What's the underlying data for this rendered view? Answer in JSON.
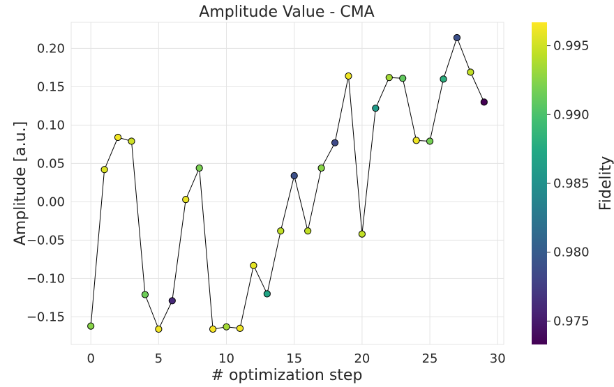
{
  "chart_data": {
    "type": "scatter",
    "title": "Amplitude Value - CMA",
    "xlabel": "# optimization step",
    "ylabel": "Amplitude [a.u.]",
    "xlim": [
      -1.45,
      30.45
    ],
    "ylim": [
      -0.186,
      0.234
    ],
    "x_ticks": [
      0,
      5,
      10,
      15,
      20,
      25,
      30
    ],
    "y_ticks": [
      -0.15,
      -0.1,
      -0.05,
      0.0,
      0.05,
      0.1,
      0.15,
      0.2
    ],
    "x_tick_labels": [
      "0",
      "5",
      "10",
      "15",
      "20",
      "25",
      "30"
    ],
    "y_tick_labels": [
      "−0.15",
      "−0.10",
      "−0.05",
      "0.00",
      "0.05",
      "0.10",
      "0.15",
      "0.20"
    ],
    "grid": true,
    "connecting_line_color": "#000000",
    "marker_edge_color": "#000000",
    "colormap": "viridis",
    "colorbar": {
      "label": "Fidelity",
      "range": [
        0.9733,
        0.9967
      ],
      "ticks": [
        0.975,
        0.98,
        0.985,
        0.99,
        0.995
      ],
      "tick_labels": [
        "0.975",
        "0.980",
        "0.985",
        "0.990",
        "0.995"
      ]
    },
    "series": [
      {
        "x": [
          0,
          1,
          2,
          3,
          4,
          5,
          6,
          7,
          8,
          9,
          10,
          11,
          12,
          13,
          14,
          15,
          16,
          17,
          18,
          19,
          20,
          21,
          22,
          23,
          24,
          25,
          26,
          27,
          28,
          29
        ],
        "y": [
          -0.162,
          0.042,
          0.084,
          0.079,
          -0.121,
          -0.166,
          -0.129,
          0.003,
          0.044,
          -0.166,
          -0.163,
          -0.165,
          -0.083,
          -0.12,
          -0.038,
          0.034,
          -0.038,
          0.044,
          0.077,
          0.164,
          -0.042,
          0.122,
          0.162,
          0.161,
          0.08,
          0.079,
          0.16,
          0.214,
          0.169,
          0.13
        ],
        "fidelity": [
          0.9925,
          0.9955,
          0.9963,
          0.995,
          0.9915,
          0.9963,
          0.976,
          0.996,
          0.992,
          0.9965,
          0.9935,
          0.9963,
          0.9958,
          0.987,
          0.9945,
          0.979,
          0.9945,
          0.9925,
          0.9785,
          0.9962,
          0.9945,
          0.986,
          0.9935,
          0.991,
          0.9962,
          0.9918,
          0.988,
          0.979,
          0.9945,
          0.9733
        ]
      }
    ]
  }
}
